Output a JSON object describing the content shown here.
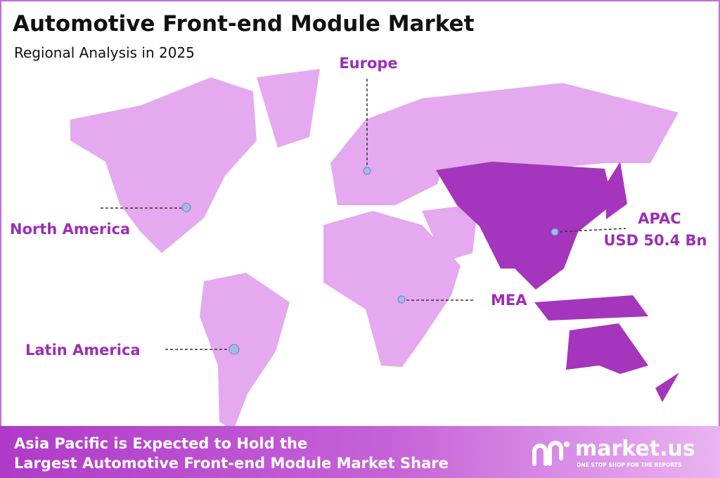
{
  "header": {
    "title": "Automotive Front-end Module Market",
    "subtitle": "Regional Analysis in 2025"
  },
  "regions": [
    {
      "label": "Europe"
    },
    {
      "label": "North America"
    },
    {
      "label": "APAC",
      "value": "USD 50.4 Bn"
    },
    {
      "label": "MEA"
    },
    {
      "label": "Latin America"
    }
  ],
  "footer": {
    "lines": [
      "Asia Pacific is Expected to Hold the",
      "Largest Automotive Front-end Module Market Share"
    ],
    "brand": "market.us",
    "tagline": "ONE STOP SHOP FOR THE REPORTS"
  }
}
